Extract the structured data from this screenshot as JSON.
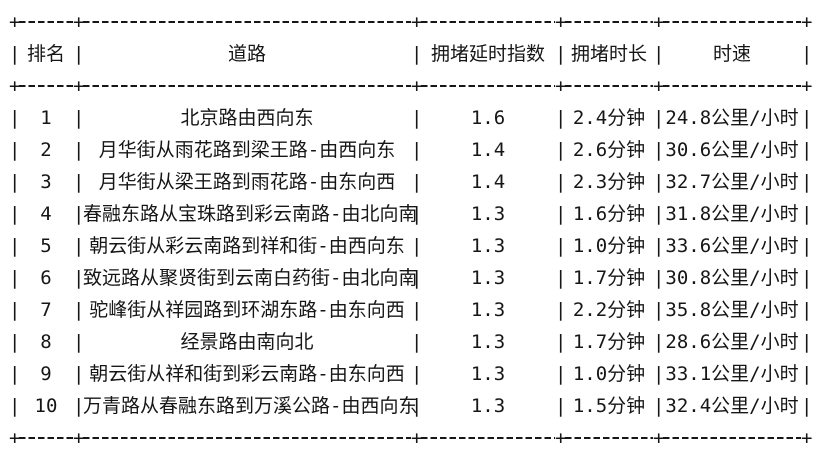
{
  "table": {
    "border": {
      "corner": "+",
      "vertical": "|"
    },
    "headers": {
      "rank": "排名",
      "road": "道路",
      "index": "拥堵延时指数",
      "duration": "拥堵时长",
      "speed": "时速"
    },
    "rows": [
      {
        "rank": "1",
        "road": "北京路由西向东",
        "index": "1.6",
        "duration": "2.4分钟",
        "speed": "24.8公里/小时"
      },
      {
        "rank": "2",
        "road": "月华街从雨花路到梁王路-由西向东",
        "index": "1.4",
        "duration": "2.6分钟",
        "speed": "30.6公里/小时"
      },
      {
        "rank": "3",
        "road": "月华街从梁王路到雨花路-由东向西",
        "index": "1.4",
        "duration": "2.3分钟",
        "speed": "32.7公里/小时"
      },
      {
        "rank": "4",
        "road": "春融东路从宝珠路到彩云南路-由北向南",
        "index": "1.3",
        "duration": "1.6分钟",
        "speed": "31.8公里/小时"
      },
      {
        "rank": "5",
        "road": "朝云街从彩云南路到祥和街-由西向东",
        "index": "1.3",
        "duration": "1.0分钟",
        "speed": "33.6公里/小时"
      },
      {
        "rank": "6",
        "road": "致远路从聚贤街到云南白药街-由北向南",
        "index": "1.3",
        "duration": "1.7分钟",
        "speed": "30.8公里/小时"
      },
      {
        "rank": "7",
        "road": "驼峰街从祥园路到环湖东路-由东向西",
        "index": "1.3",
        "duration": "2.2分钟",
        "speed": "35.8公里/小时"
      },
      {
        "rank": "8",
        "road": "经景路由南向北",
        "index": "1.3",
        "duration": "1.7分钟",
        "speed": "28.6公里/小时"
      },
      {
        "rank": "9",
        "road": "朝云街从祥和街到彩云南路-由东向西",
        "index": "1.3",
        "duration": "1.0分钟",
        "speed": "33.1公里/小时"
      },
      {
        "rank": "10",
        "road": "万青路从春融东路到万溪公路-由西向东",
        "index": "1.3",
        "duration": "1.5分钟",
        "speed": "32.4公里/小时"
      }
    ]
  }
}
